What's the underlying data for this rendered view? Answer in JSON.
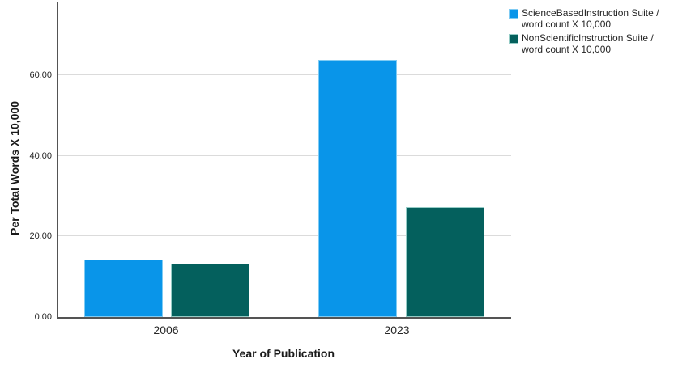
{
  "chart_data": {
    "type": "bar",
    "title": "",
    "xlabel": "Year of Publication",
    "ylabel": "Per Total Words X 10,000",
    "categories": [
      "2006",
      "2023"
    ],
    "series": [
      {
        "name": "ScienceBasedInstruction Suite / word count X 10,000",
        "values": [
          14.2,
          63.7
        ],
        "color": "#0995E9",
        "border_color": "#7FCBF3"
      },
      {
        "name": "NonScientificInstruction Suite / word count X 10,000",
        "values": [
          13.3,
          27.3
        ],
        "color": "#04605D",
        "border_color": "#95CCC6"
      }
    ],
    "y_ticks": [
      {
        "value": 0,
        "label": "0.00"
      },
      {
        "value": 20,
        "label": "20.00"
      },
      {
        "value": 40,
        "label": "40.00"
      },
      {
        "value": 60,
        "label": "60.00"
      }
    ],
    "ylim": [
      0,
      78
    ],
    "grid": "horizontal-major-only",
    "legend_position": "top-right",
    "legend": {
      "items": [
        {
          "line1": "ScienceBasedInstruction Suite /",
          "line2": "word count X 10,000",
          "color": "#0995E9",
          "border_color": "#7FCBF3"
        },
        {
          "line1": "NonScientificInstruction Suite /",
          "line2": "word count X 10,000",
          "color": "#04605D",
          "border_color": "#95CCC6"
        }
      ]
    },
    "colors": {
      "axis_line": "#545454",
      "gridline": "#DBDBDB",
      "text": "#262626"
    }
  }
}
